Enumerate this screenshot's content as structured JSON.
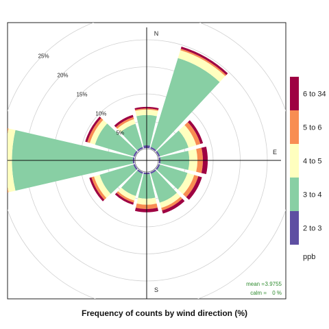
{
  "chart_data": {
    "type": "windrose",
    "title": "Frequency of counts by wind direction (%)",
    "directions": [
      "N",
      "E",
      "S"
    ],
    "angles": [
      0,
      30,
      60,
      90,
      120,
      150,
      180,
      210,
      240,
      270,
      300,
      330
    ],
    "radial_ticks": [
      "5%",
      "10%",
      "15%",
      "20%",
      "25%"
    ],
    "radial_values": [
      5,
      10,
      15,
      20,
      25
    ],
    "rmax": 26,
    "legend_title": "ppb",
    "bins": [
      {
        "label": "2 to 3",
        "color": "#5e4fa2"
      },
      {
        "label": "3 to 4",
        "color": "#88cfa4"
      },
      {
        "label": "4 to 5",
        "color": "#ffffbf"
      },
      {
        "label": "5 to 6",
        "color": "#f88d52"
      },
      {
        "label": "6 to 34",
        "color": "#9e0142"
      }
    ],
    "sectors": [
      {
        "angle": 0,
        "values": [
          0.5,
          5.6,
          1.0,
          0.2,
          0.3
        ]
      },
      {
        "angle": 30,
        "values": [
          0.3,
          17.2,
          1.5,
          0.3,
          0.4
        ]
      },
      {
        "angle": 60,
        "values": [
          0.3,
          5.5,
          1.5,
          0.8,
          0.5
        ]
      },
      {
        "angle": 90,
        "values": [
          0.3,
          5.3,
          1.5,
          1.0,
          0.9
        ]
      },
      {
        "angle": 120,
        "values": [
          0.3,
          5.3,
          1.3,
          0.8,
          0.7
        ]
      },
      {
        "angle": 150,
        "values": [
          0.3,
          5.6,
          1.0,
          0.5,
          0.6
        ]
      },
      {
        "angle": 180,
        "values": [
          0.3,
          4.5,
          1.1,
          0.8,
          0.6
        ]
      },
      {
        "angle": 210,
        "values": [
          0.3,
          4.3,
          0.9,
          0.4,
          0.4
        ]
      },
      {
        "angle": 240,
        "values": [
          0.3,
          6.5,
          1.1,
          0.5,
          0.4
        ]
      },
      {
        "angle": 270,
        "values": [
          0.3,
          22.3,
          1.3,
          0.5,
          0.3
        ]
      },
      {
        "angle": 300,
        "values": [
          0.3,
          7.4,
          1.0,
          0.5,
          0.4
        ]
      },
      {
        "angle": 330,
        "values": [
          0.3,
          4.5,
          0.9,
          0.4,
          0.4
        ]
      }
    ],
    "stats": {
      "mean_label": "mean =",
      "mean_value": "3.9755",
      "calm_label": "calm =",
      "calm_value": "0 %"
    }
  }
}
